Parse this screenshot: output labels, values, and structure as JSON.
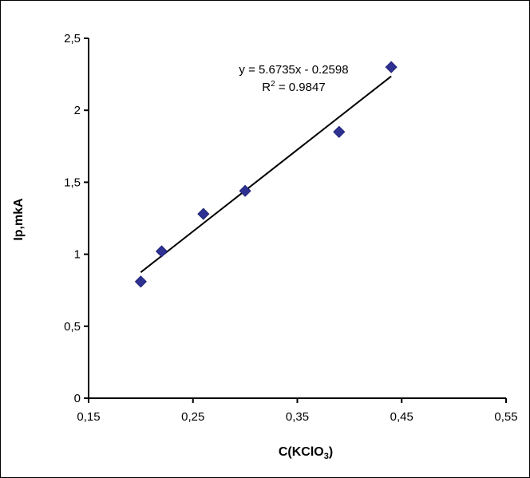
{
  "chart_data": {
    "type": "scatter",
    "title": "",
    "xlabel_main": "C(KClO",
    "xlabel_sub": "3",
    "xlabel_close": ")",
    "ylabel": "Ip,mkA",
    "xlim": [
      0.15,
      0.55
    ],
    "ylim": [
      0,
      2.5
    ],
    "x_ticks": [
      0.15,
      0.25,
      0.35,
      0.45,
      0.55
    ],
    "y_ticks": [
      0,
      0.5,
      1,
      1.5,
      2,
      2.5
    ],
    "x_tick_labels": [
      "0,15",
      "0,25",
      "0,35",
      "0,45",
      "0,55"
    ],
    "y_tick_labels": [
      "0",
      "0,5",
      "1",
      "1,5",
      "2",
      "2,5"
    ],
    "grid": false,
    "legend": "none",
    "marker": "diamond",
    "marker_color": "#2E3192",
    "points": [
      {
        "x": 0.2,
        "y": 0.81
      },
      {
        "x": 0.22,
        "y": 1.02
      },
      {
        "x": 0.26,
        "y": 1.28
      },
      {
        "x": 0.3,
        "y": 1.44
      },
      {
        "x": 0.39,
        "y": 1.85
      },
      {
        "x": 0.44,
        "y": 2.3
      }
    ],
    "trendline": {
      "slope": 5.6735,
      "intercept": -0.2598,
      "x_range": [
        0.2,
        0.44
      ],
      "color": "#000000",
      "equation_label": "y = 5.6735x - 0.2598",
      "r2_prefix": "R",
      "r2_sup": "2",
      "r2_value": " = 0.9847"
    }
  }
}
